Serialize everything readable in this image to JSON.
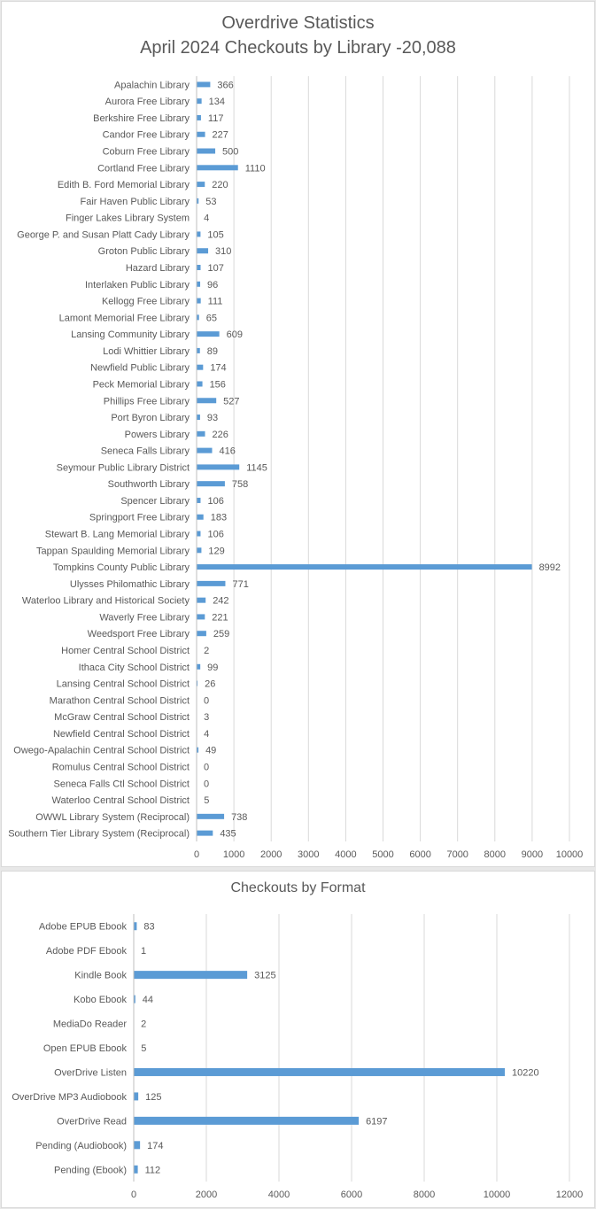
{
  "chart_data": [
    {
      "type": "bar",
      "orientation": "horizontal",
      "title": "Overdrive Statistics",
      "subtitle": "April 2024 Checkouts by Library -20,088",
      "xlim": [
        0,
        10000
      ],
      "xticks": [
        0,
        1000,
        2000,
        3000,
        4000,
        5000,
        6000,
        7000,
        8000,
        9000,
        10000
      ],
      "grid": true,
      "bar_color": "#5B9BD5",
      "categories": [
        "Apalachin Library",
        "Aurora Free Library",
        "Berkshire Free Library",
        "Candor Free Library",
        "Coburn Free Library",
        "Cortland Free Library",
        "Edith B. Ford Memorial Library",
        "Fair Haven Public Library",
        "Finger Lakes Library System",
        "George P. and Susan Platt Cady Library",
        "Groton Public Library",
        "Hazard Library",
        "Interlaken Public Library",
        "Kellogg Free Library",
        "Lamont Memorial Free Library",
        "Lansing Community Library",
        "Lodi Whittier Library",
        "Newfield Public Library",
        "Peck Memorial Library",
        "Phillips Free Library",
        "Port Byron Library",
        "Powers Library",
        "Seneca Falls Library",
        "Seymour Public Library District",
        "Southworth Library",
        "Spencer Library",
        "Springport Free Library",
        "Stewart B. Lang Memorial Library",
        "Tappan Spaulding Memorial Library",
        "Tompkins County Public Library",
        "Ulysses Philomathic Library",
        "Waterloo Library and Historical Society",
        "Waverly Free Library",
        "Weedsport Free Library",
        "Homer Central School District",
        "Ithaca City School District",
        "Lansing Central School District",
        "Marathon Central School District",
        "McGraw Central School District",
        "Newfield Central School District",
        "Owego-Apalachin Central School District",
        "Romulus Central School District",
        "Seneca Falls Ctl School District",
        "Waterloo Central School District",
        "OWWL Library System (Reciprocal)",
        "Southern Tier Library System (Reciprocal)"
      ],
      "values": [
        366,
        134,
        117,
        227,
        500,
        1110,
        220,
        53,
        4,
        105,
        310,
        107,
        96,
        111,
        65,
        609,
        89,
        174,
        156,
        527,
        93,
        226,
        416,
        1145,
        758,
        106,
        183,
        106,
        129,
        8992,
        771,
        242,
        221,
        259,
        2,
        99,
        26,
        0,
        3,
        4,
        49,
        0,
        0,
        5,
        738,
        435
      ]
    },
    {
      "type": "bar",
      "orientation": "horizontal",
      "title": "Checkouts by Format",
      "xlim": [
        0,
        12000
      ],
      "xticks": [
        0,
        2000,
        4000,
        6000,
        8000,
        10000,
        12000
      ],
      "grid": true,
      "bar_color": "#5B9BD5",
      "categories": [
        "Adobe EPUB Ebook",
        "Adobe PDF Ebook",
        "Kindle Book",
        "Kobo Ebook",
        "MediaDo Reader",
        "Open EPUB Ebook",
        "OverDrive Listen",
        "OverDrive MP3 Audiobook",
        "OverDrive Read",
        "Pending (Audiobook)",
        "Pending (Ebook)"
      ],
      "values": [
        83,
        1,
        3125,
        44,
        2,
        5,
        10220,
        125,
        6197,
        174,
        112
      ]
    }
  ]
}
